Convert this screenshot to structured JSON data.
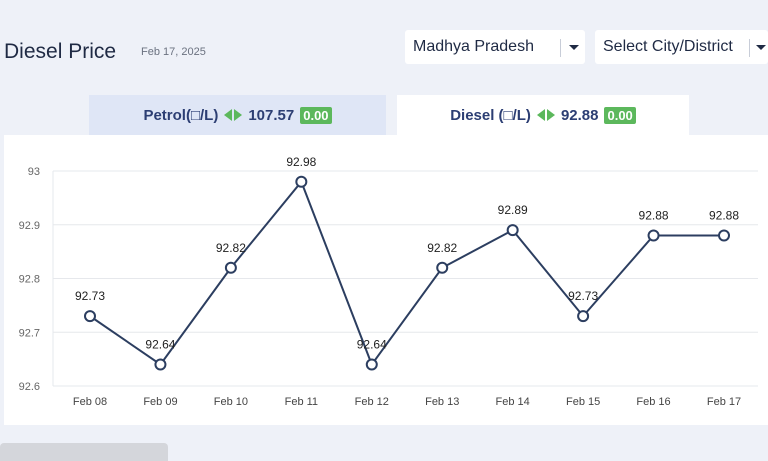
{
  "header": {
    "title": "Diesel Price",
    "date": "Feb 17, 2025",
    "state_select": "Madhya Pradesh",
    "city_select": "Select City/District"
  },
  "tabs": {
    "petrol": {
      "label": "Petrol(□/L)",
      "price": "107.57",
      "change": "0.00"
    },
    "diesel": {
      "label": "Diesel (□/L)",
      "price": "92.88",
      "change": "0.00"
    }
  },
  "colors": {
    "line": "#2c3e60",
    "badge": "#5cb85c",
    "tab_active": "#ffffff",
    "tab_inactive": "#dfe6f6"
  },
  "chart_data": {
    "type": "line",
    "title": "",
    "xlabel": "",
    "ylabel": "",
    "categories": [
      "Feb 08",
      "Feb 09",
      "Feb 10",
      "Feb 11",
      "Feb 12",
      "Feb 13",
      "Feb 14",
      "Feb 15",
      "Feb 16",
      "Feb 17"
    ],
    "series": [
      {
        "values": [
          92.73,
          92.64,
          92.82,
          92.98,
          92.64,
          92.82,
          92.89,
          92.73,
          92.88,
          92.88
        ]
      }
    ],
    "ylim": [
      92.6,
      93
    ],
    "yticks": [
      "92.6",
      "92.7",
      "92.8",
      "92.9",
      "93"
    ],
    "grid": true,
    "legend": "none"
  }
}
